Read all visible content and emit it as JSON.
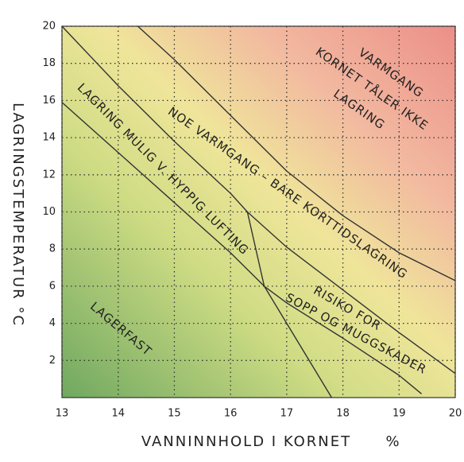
{
  "chart_data": {
    "type": "line",
    "x_label": "VANNINNHOLD I KORNET",
    "x_unit": "%",
    "y_label": "LAGRINGSTEMPERATUR °C",
    "xlim": [
      13,
      20
    ],
    "ylim": [
      0,
      20
    ],
    "xticks": [
      13,
      14,
      15,
      16,
      17,
      18,
      19,
      20
    ],
    "yticks": [
      2,
      4,
      6,
      8,
      10,
      12,
      14,
      16,
      18,
      20
    ],
    "grid": true,
    "line_color": "#333333",
    "lines": [
      {
        "x": [
          14.35,
          15,
          16,
          17,
          18,
          19,
          20
        ],
        "y": [
          20,
          18.2,
          15.2,
          12.2,
          9.8,
          7.8,
          6.3
        ]
      },
      {
        "x": [
          13,
          14,
          15,
          16,
          16.3,
          17,
          18,
          19,
          20
        ],
        "y": [
          20,
          16.8,
          13.8,
          11,
          10,
          8.1,
          5.8,
          3.5,
          1.3
        ]
      },
      {
        "x": [
          13,
          14,
          15,
          16,
          16.6,
          17,
          18,
          19,
          19.4
        ],
        "y": [
          15.9,
          13.2,
          10.5,
          7.8,
          6,
          5.1,
          3.2,
          1.2,
          0.2
        ]
      },
      {
        "x": [
          16.3,
          16.6,
          17,
          17.8
        ],
        "y": [
          10,
          6,
          4,
          0
        ]
      }
    ],
    "annotations": [
      "VARMGANG",
      "KORNET TÅLER IKKE",
      "LAGRING",
      "NOE VARMGANG – BARE KORTTIDSLAGRING",
      "LAGRING MULIG V. HYPPIG LUFTING",
      "RISIKO FOR",
      "SOPP OG MUGGSKADER",
      "LAGERFAST"
    ]
  }
}
